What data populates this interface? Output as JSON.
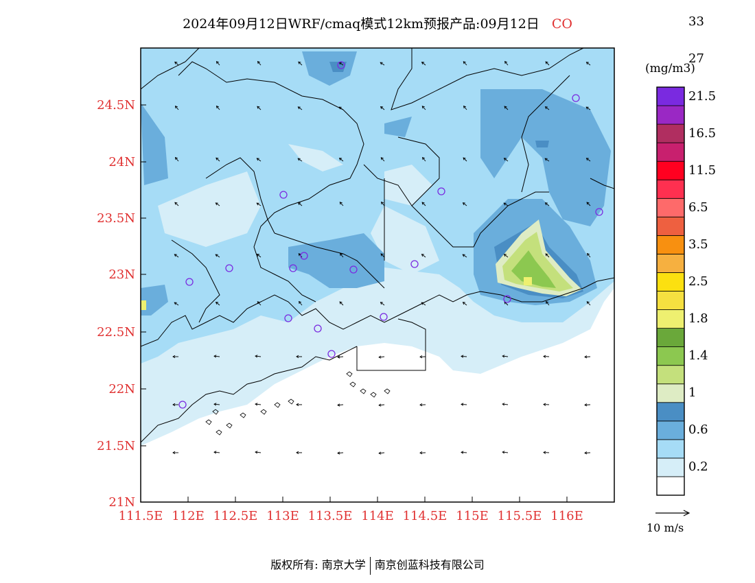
{
  "title": {
    "main": "2024年09月12日WRF/cmaq模式12km预报产品:09月12日",
    "species": "CO"
  },
  "axes": {
    "lat_labels": [
      "24.5N",
      "24N",
      "23.5N",
      "23N",
      "22.5N",
      "22N",
      "21.5N",
      "21N"
    ],
    "lon_labels": [
      "111.5E",
      "112E",
      "112.5E",
      "113E",
      "113.5E",
      "114E",
      "114.5E",
      "115E",
      "115.5E",
      "116E"
    ],
    "label_color": "#e03030"
  },
  "colorbar": {
    "unit": "(mg/m3)",
    "labels": [
      "33",
      "27",
      "21.5",
      "16.5",
      "11.5",
      "6.5",
      "3.5",
      "2.5",
      "1.8",
      "1.4",
      "1",
      "0.6",
      "0.2"
    ],
    "colors": [
      "#ffffff",
      "#d6eef8",
      "#a6dcf6",
      "#6aaedc",
      "#4a8ec4",
      "#deecc4",
      "#c4e07c",
      "#8cc850",
      "#6aa83a",
      "#eef070",
      "#f6e040",
      "#fce010",
      "#f6b040",
      "#f89010",
      "#ee6040",
      "#fe6a6a",
      "#ff3050",
      "#ff0020",
      "#c8206e",
      "#b02e60",
      "#9a28c4",
      "#7a2ae0"
    ]
  },
  "wind_scale": {
    "label": "10 m/s"
  },
  "stations": {
    "color": "#7a2ae0"
  },
  "footer": {
    "left": "版权所有: 南京大学",
    "right": "南京创蓝科技有限公司"
  }
}
